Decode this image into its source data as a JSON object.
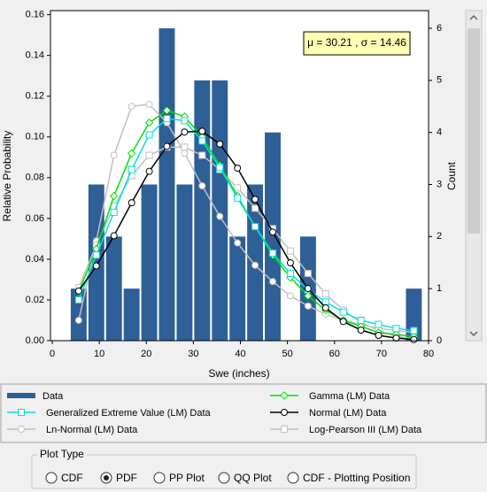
{
  "chart_data": {
    "type": "histogram",
    "x_label": "Swe (inches)",
    "y_label": "Relative Probability",
    "y2_label": "Count",
    "annotation": "μ = 30.21 , σ = 14.46",
    "xlim": [
      0,
      80
    ],
    "xticks": [
      0,
      10,
      20,
      30,
      40,
      50,
      60,
      70,
      80
    ],
    "ylim": [
      0,
      0.162
    ],
    "yticks": [
      {
        "value": 0,
        "label": "0.00"
      },
      0.02,
      0.04,
      0.06,
      0.08,
      {
        "value": 0.1,
        "label": "0.10"
      },
      0.12,
      0.14,
      0.16
    ],
    "y2lim": [
      0,
      6.34
    ],
    "y2ticks": [
      0,
      1,
      2,
      3,
      4,
      5,
      6
    ],
    "bins": [
      3.75,
      7.5,
      11.25,
      15,
      18.75,
      22.5,
      26.25,
      30,
      33.75,
      37.5,
      41.25,
      45,
      48.75,
      52.5,
      56.25,
      60,
      63.75,
      67.5,
      71.25,
      75,
      78.75
    ],
    "x": [
      5.625,
      9.375,
      13.125,
      16.875,
      20.625,
      24.375,
      28.125,
      31.875,
      35.625,
      39.375,
      43.125,
      46.875,
      50.625,
      54.375,
      58.125,
      61.875,
      65.625,
      69.375,
      73.125,
      76.875
    ],
    "series": [
      {
        "name": "Data",
        "type": "bar",
        "axis": "y2",
        "color": "#2e5f96",
        "values": [
          1,
          3,
          2,
          1,
          3,
          6,
          3,
          5,
          5,
          2,
          3,
          4,
          0,
          2,
          0,
          0,
          0,
          0,
          0,
          1
        ]
      },
      {
        "name": "Gamma (LM) Data",
        "type": "line",
        "marker": "diamond",
        "color": "#00e000",
        "values": [
          0.024,
          0.045,
          0.071,
          0.092,
          0.107,
          0.113,
          0.11,
          0.1,
          0.086,
          0.071,
          0.056,
          0.042,
          0.031,
          0.022,
          0.015,
          0.01,
          0.007,
          0.004,
          0.003,
          0.002
        ]
      },
      {
        "name": "Generalized Extreme Value (LM) Data",
        "type": "line",
        "marker": "square",
        "color": "#00e0e0",
        "values": [
          0.02,
          0.042,
          0.063,
          0.084,
          0.101,
          0.109,
          0.108,
          0.098,
          0.085,
          0.07,
          0.056,
          0.043,
          0.033,
          0.025,
          0.019,
          0.014,
          0.01,
          0.008,
          0.006,
          0.005
        ]
      },
      {
        "name": "Normal (LM) Data",
        "type": "line",
        "marker": "circle",
        "color": "#000000",
        "values": [
          0.0244,
          0.0367,
          0.0515,
          0.0677,
          0.0831,
          0.0954,
          0.1024,
          0.1028,
          0.0965,
          0.0847,
          0.0694,
          0.0533,
          0.0382,
          0.0256,
          0.0161,
          0.0094,
          0.0052,
          0.0026,
          0.0013,
          0.0006
        ]
      },
      {
        "name": "Ln-Normal (LM) Data",
        "type": "line",
        "marker": "circle",
        "color": "#c0c0c0",
        "values": [
          0.01,
          0.049,
          0.091,
          0.115,
          0.116,
          0.107,
          0.092,
          0.076,
          0.061,
          0.048,
          0.037,
          0.029,
          0.022,
          0.017,
          0.013,
          0.01,
          0.008,
          0.006,
          0.005,
          0.004
        ]
      },
      {
        "name": "Log-Pearson III (LM) Data",
        "type": "line",
        "marker": "square",
        "color": "#c0c0c0",
        "values": [
          0.026,
          0.047,
          0.066,
          0.081,
          0.091,
          0.095,
          0.095,
          0.091,
          0.084,
          0.075,
          0.065,
          0.055,
          0.044,
          0.033,
          0.023,
          0.015,
          0.009,
          0.005,
          0.002,
          0.001
        ]
      }
    ]
  },
  "plot_type": {
    "label": "Plot Type",
    "options": [
      "CDF",
      "PDF",
      "PP Plot",
      "QQ Plot",
      "CDF - Plotting Position"
    ],
    "selected": 1
  }
}
